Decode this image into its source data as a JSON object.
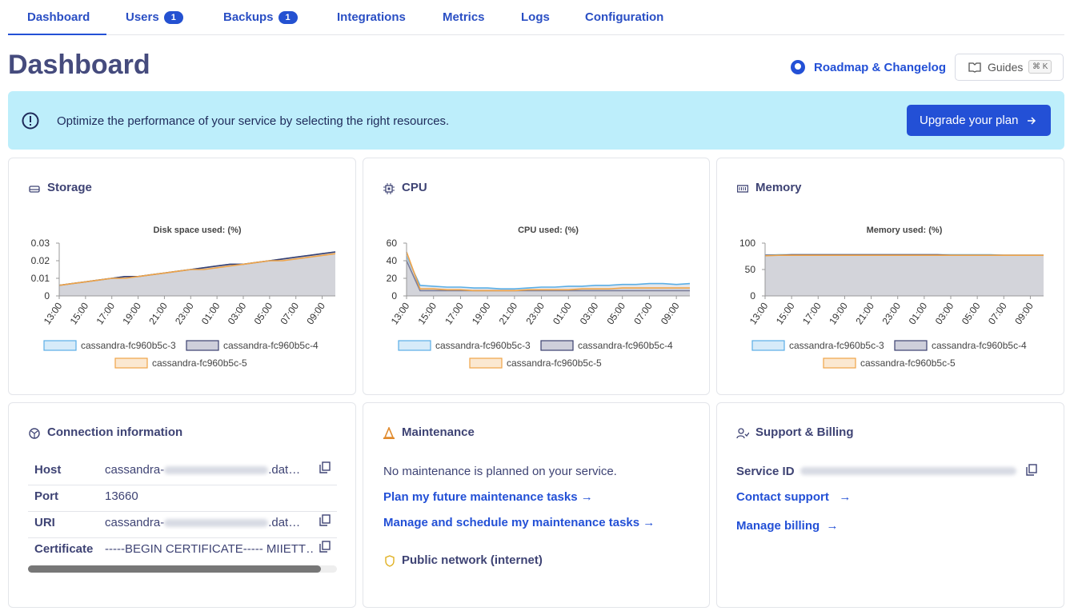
{
  "tabs": [
    {
      "label": "Dashboard"
    },
    {
      "label": "Users",
      "badge": 1
    },
    {
      "label": "Backups",
      "badge": 1
    },
    {
      "label": "Integrations"
    },
    {
      "label": "Metrics"
    },
    {
      "label": "Logs"
    },
    {
      "label": "Configuration"
    }
  ],
  "header": {
    "title": "Dashboard",
    "roadmap": "Roadmap & Changelog",
    "guides": "Guides",
    "shortcut": "⌘ K"
  },
  "banner": {
    "text": "Optimize the performance of your service by selecting the right resources.",
    "button": "Upgrade your plan"
  },
  "panels": [
    {
      "title": "Storage"
    },
    {
      "title": "CPU"
    },
    {
      "title": "Memory"
    }
  ],
  "chart_data": [
    {
      "type": "area",
      "title": "Disk space used: (%)",
      "categories": [
        "13:00",
        null,
        "15:00",
        null,
        "17:00",
        null,
        "19:00",
        null,
        "21:00",
        null,
        "23:00",
        null,
        "01:00",
        null,
        "03:00",
        null,
        "05:00",
        null,
        "07:00",
        null,
        "09:00",
        null
      ],
      "ylim": [
        0,
        0.03
      ],
      "yticks": [
        0,
        0.01,
        0.02,
        0.03
      ],
      "series": [
        {
          "name": "cassandra-fc960b5c-3",
          "color": "#5aaee6",
          "values": [
            0.006,
            0.007,
            0.008,
            0.009,
            0.01,
            0.011,
            0.011,
            0.012,
            0.013,
            0.014,
            0.015,
            0.016,
            0.017,
            0.018,
            0.018,
            0.019,
            0.02,
            0.021,
            0.022,
            0.023,
            0.024,
            0.025
          ]
        },
        {
          "name": "cassandra-fc960b5c-4",
          "color": "#3b4070",
          "values": [
            0.006,
            0.007,
            0.008,
            0.009,
            0.01,
            0.011,
            0.011,
            0.012,
            0.013,
            0.014,
            0.015,
            0.016,
            0.017,
            0.018,
            0.018,
            0.019,
            0.02,
            0.021,
            0.022,
            0.023,
            0.024,
            0.025
          ]
        },
        {
          "name": "cassandra-fc960b5c-5",
          "color": "#f0a448",
          "values": [
            0.006,
            0.007,
            0.008,
            0.009,
            0.01,
            0.01,
            0.011,
            0.012,
            0.013,
            0.014,
            0.015,
            0.015,
            0.016,
            0.017,
            0.018,
            0.019,
            0.02,
            0.02,
            0.021,
            0.022,
            0.023,
            0.024
          ]
        }
      ]
    },
    {
      "type": "area",
      "title": "CPU used: (%)",
      "categories": [
        "13:00",
        null,
        "15:00",
        null,
        "17:00",
        null,
        "19:00",
        null,
        "21:00",
        null,
        "23:00",
        null,
        "01:00",
        null,
        "03:00",
        null,
        "05:00",
        null,
        "07:00",
        null,
        "09:00",
        null
      ],
      "ylim": [
        0,
        60
      ],
      "yticks": [
        0,
        20,
        40,
        60
      ],
      "series": [
        {
          "name": "cassandra-fc960b5c-3",
          "color": "#5aaee6",
          "values": [
            45,
            12,
            11,
            10,
            10,
            9,
            9,
            8,
            8,
            9,
            10,
            10,
            11,
            11,
            12,
            12,
            13,
            13,
            14,
            14,
            13,
            14
          ]
        },
        {
          "name": "cassandra-fc960b5c-4",
          "color": "#3b4070",
          "values": [
            40,
            6,
            6,
            6,
            6,
            6,
            6,
            6,
            6,
            6,
            6,
            6,
            6,
            6,
            6,
            6,
            6,
            6,
            6,
            6,
            6,
            6
          ]
        },
        {
          "name": "cassandra-fc960b5c-5",
          "color": "#f0a448",
          "values": [
            50,
            8,
            8,
            7,
            7,
            6,
            6,
            6,
            6,
            7,
            7,
            7,
            7,
            8,
            8,
            8,
            9,
            9,
            9,
            9,
            9,
            9
          ]
        }
      ]
    },
    {
      "type": "area",
      "title": "Memory used: (%)",
      "categories": [
        "13:00",
        null,
        "15:00",
        null,
        "17:00",
        null,
        "19:00",
        null,
        "21:00",
        null,
        "23:00",
        null,
        "01:00",
        null,
        "03:00",
        null,
        "05:00",
        null,
        "07:00",
        null,
        "09:00",
        null
      ],
      "ylim": [
        0,
        100
      ],
      "yticks": [
        0,
        50,
        100
      ],
      "series": [
        {
          "name": "cassandra-fc960b5c-3",
          "color": "#5aaee6",
          "values": [
            77,
            78,
            78,
            78,
            78,
            78,
            78,
            78,
            78,
            78,
            78,
            78,
            78,
            78,
            78,
            78,
            78,
            78,
            77,
            77,
            77,
            77
          ]
        },
        {
          "name": "cassandra-fc960b5c-4",
          "color": "#3b4070",
          "values": [
            77,
            77,
            78,
            78,
            78,
            78,
            78,
            78,
            78,
            78,
            78,
            78,
            78,
            78,
            77,
            77,
            77,
            77,
            77,
            77,
            77,
            77
          ]
        },
        {
          "name": "cassandra-fc960b5c-5",
          "color": "#f0a448",
          "values": [
            76,
            77,
            77,
            77,
            77,
            77,
            77,
            77,
            77,
            77,
            77,
            77,
            77,
            77,
            77,
            77,
            77,
            77,
            77,
            77,
            77,
            77
          ]
        }
      ]
    }
  ],
  "connection": {
    "title": "Connection information",
    "rows": [
      {
        "label": "Host",
        "value": "cassandra-",
        "suffix": ".dat…"
      },
      {
        "label": "Port",
        "value": "13660"
      },
      {
        "label": "URI",
        "value": "cassandra-",
        "suffix": ".dat…"
      },
      {
        "label": "Certificate",
        "value": "-----BEGIN CERTIFICATE----- MIIETT…"
      }
    ]
  },
  "maintenance": {
    "title": "Maintenance",
    "text": "No maintenance is planned on your service.",
    "link1": "Plan my future maintenance tasks",
    "link2": "Manage and schedule my maintenance tasks",
    "network": "Public network (internet)"
  },
  "support": {
    "title": "Support & Billing",
    "service_id": "Service ID",
    "contact": "Contact support",
    "billing": "Manage billing"
  }
}
